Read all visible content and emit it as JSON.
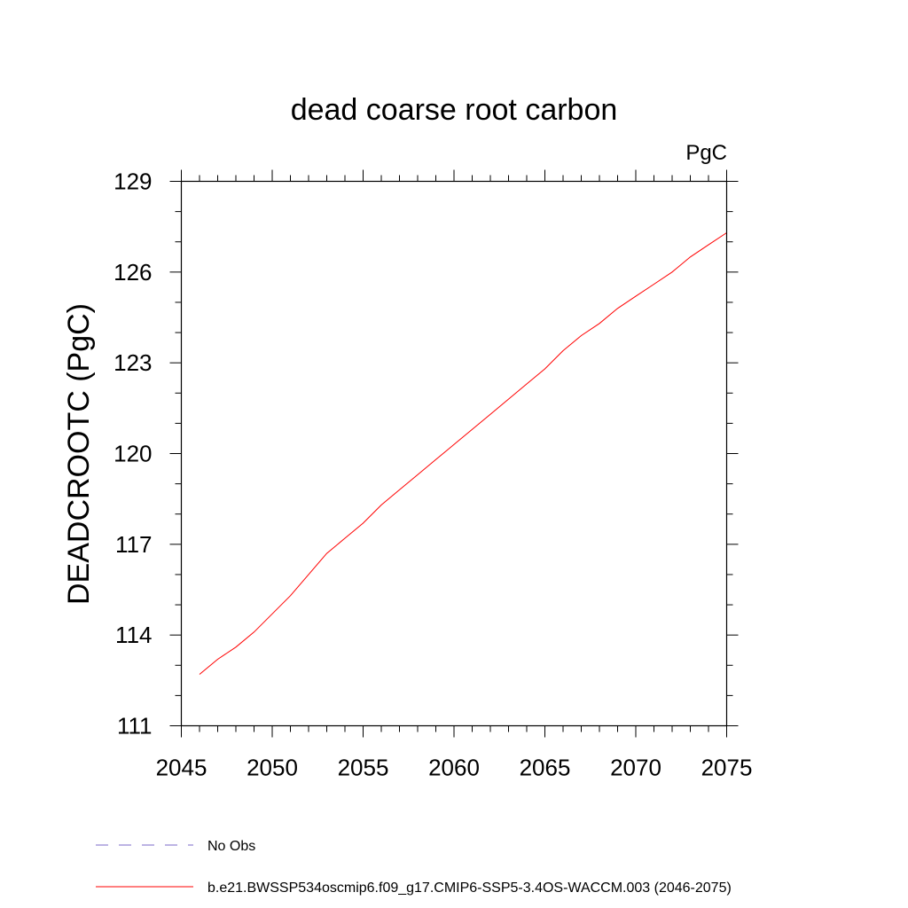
{
  "chart_data": {
    "type": "line",
    "title": "dead coarse root carbon",
    "units_label": "PgC",
    "ylabel": "DEADCROOTC  (PgC)",
    "xlabel": "",
    "xlim": [
      2045,
      2075
    ],
    "ylim": [
      111,
      129
    ],
    "x_major_ticks": [
      2045,
      2050,
      2055,
      2060,
      2065,
      2070,
      2075
    ],
    "x_major_tick_labels": [
      "2045",
      "2050",
      "2055",
      "2060",
      "2065",
      "2070",
      "2075"
    ],
    "x_minor_step": 1,
    "y_major_ticks": [
      111,
      114,
      117,
      120,
      123,
      126,
      129
    ],
    "y_major_tick_labels": [
      "111",
      "114",
      "117",
      "120",
      "123",
      "126",
      "129"
    ],
    "y_minor_step": 1,
    "grid": false,
    "legend_position": "bottom",
    "series": [
      {
        "name": "b.e21.BWSSP534oscmip6.f09_g17.CMIP6-SSP5-3.4OS-WACCM.003 (2046-2075)",
        "color": "#ff0000",
        "style": "solid",
        "x": [
          2046,
          2047,
          2048,
          2049,
          2050,
          2051,
          2052,
          2053,
          2054,
          2055,
          2056,
          2057,
          2058,
          2059,
          2060,
          2061,
          2062,
          2063,
          2064,
          2065,
          2066,
          2067,
          2068,
          2069,
          2070,
          2071,
          2072,
          2073,
          2074,
          2075
        ],
        "values": [
          112.7,
          113.2,
          113.6,
          114.1,
          114.7,
          115.3,
          116.0,
          116.7,
          117.2,
          117.7,
          118.3,
          118.8,
          119.3,
          119.8,
          120.3,
          120.8,
          121.3,
          121.8,
          122.3,
          122.8,
          123.4,
          123.9,
          124.3,
          124.8,
          125.2,
          125.6,
          126.0,
          126.5,
          126.9,
          127.3
        ]
      }
    ],
    "legend": [
      {
        "label": "No Obs",
        "color": "#7b68c8",
        "style": "dashed"
      },
      {
        "label": "b.e21.BWSSP534oscmip6.f09_g17.CMIP6-SSP5-3.4OS-WACCM.003 (2046-2075)",
        "color": "#ff0000",
        "style": "solid"
      }
    ]
  }
}
